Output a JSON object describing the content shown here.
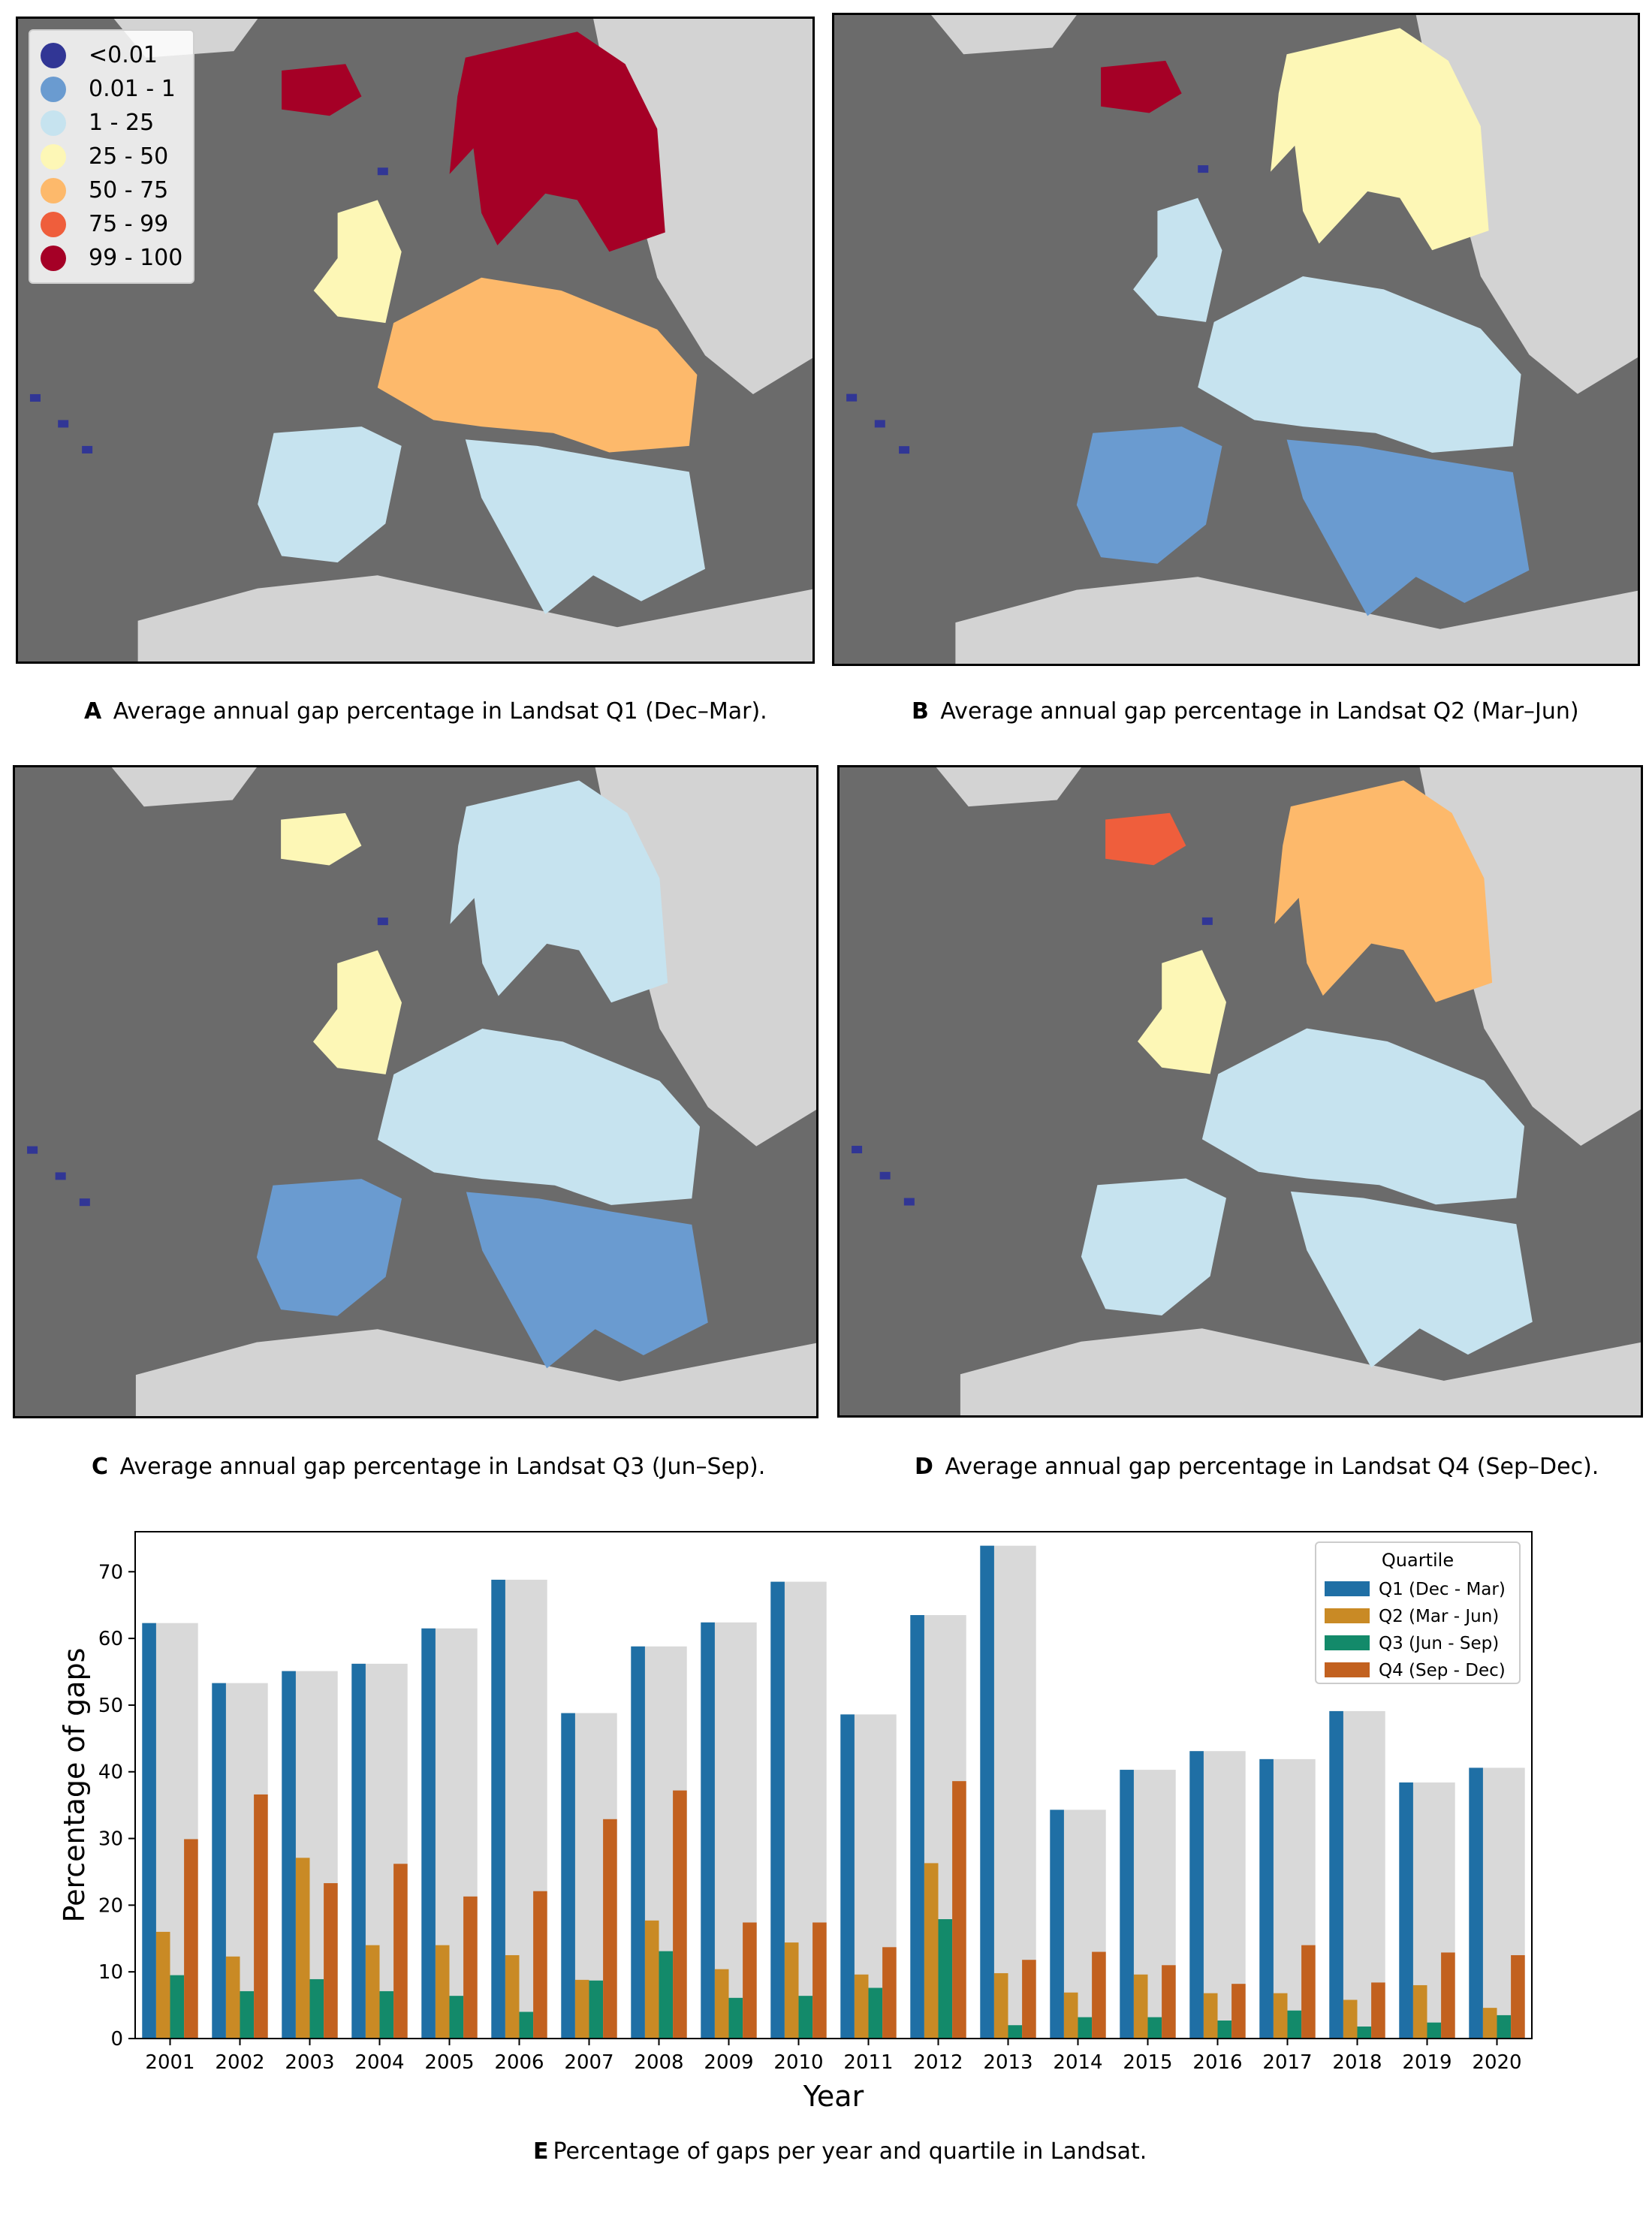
{
  "colors": {
    "ocean": "#6b6b6b",
    "land_outside": "#d3d3d3",
    "bins": [
      "#313695",
      "#6a9bd0",
      "#c6e3ef",
      "#fdf7b6",
      "#fdb96b",
      "#ef5e3c",
      "#a50026"
    ]
  },
  "legend": {
    "items": [
      {
        "label": "<0.01",
        "color": "#313695"
      },
      {
        "label": "0.01 - 1",
        "color": "#6a9bd0"
      },
      {
        "label": "1 - 25",
        "color": "#c6e3ef"
      },
      {
        "label": "25 - 50",
        "color": "#fdf7b6"
      },
      {
        "label": "50 - 75",
        "color": "#fdb96b"
      },
      {
        "label": "75 - 99",
        "color": "#ef5e3c"
      },
      {
        "label": "99 - 100",
        "color": "#a50026"
      }
    ]
  },
  "maps": [
    {
      "letter": "A",
      "caption": "Average annual gap percentage in Landsat Q1 (Dec–Mar).",
      "dominant_by_region": {
        "iceland": "99 - 100",
        "scandinavia": "99 - 100",
        "british_isles": "25 - 50",
        "central": "50 - 75",
        "iberia": "1 - 25",
        "italy_balkans": "1 - 25"
      }
    },
    {
      "letter": "B",
      "caption": "Average annual gap percentage in Landsat Q2 (Mar–Jun)",
      "dominant_by_region": {
        "iceland": "99 - 100",
        "scandinavia": "25 - 50",
        "british_isles": "1 - 25",
        "central": "1 - 25",
        "iberia": "0.01 - 1",
        "italy_balkans": "0.01 - 1"
      }
    },
    {
      "letter": "C",
      "caption": "Average annual gap percentage in Landsat Q3 (Jun–Sep).",
      "dominant_by_region": {
        "iceland": "25 - 50",
        "scandinavia": "1 - 25",
        "british_isles": "25 - 50",
        "central": "1 - 25",
        "iberia": "0.01 - 1",
        "italy_balkans": "0.01 - 1"
      }
    },
    {
      "letter": "D",
      "caption": "Average annual gap percentage in Landsat Q4 (Sep–Dec).",
      "dominant_by_region": {
        "iceland": "75 - 99",
        "scandinavia": "50 - 75",
        "british_isles": "25 - 50",
        "central": "1 - 25",
        "iberia": "1 - 25",
        "italy_balkans": "1 - 25"
      }
    }
  ],
  "chart_caption": {
    "letter": "E",
    "text": "Percentage of gaps per year and quartile in Landsat."
  },
  "chart_data": {
    "type": "bar",
    "xlabel": "Year",
    "ylabel": "Percentage of gaps",
    "ylim": [
      0,
      76
    ],
    "yticks": [
      0,
      10,
      20,
      30,
      40,
      50,
      60,
      70
    ],
    "grid": false,
    "legend_title": "Quartile",
    "legend_position": "top-right",
    "background_series_color": "#d9d9d9",
    "categories": [
      "2001",
      "2002",
      "2003",
      "2004",
      "2005",
      "2006",
      "2007",
      "2008",
      "2009",
      "2010",
      "2011",
      "2012",
      "2013",
      "2014",
      "2015",
      "2016",
      "2017",
      "2018",
      "2019",
      "2020"
    ],
    "series": [
      {
        "name": "Q1 (Dec - Mar)",
        "color": "#1f6fa5",
        "values": [
          62.3,
          53.3,
          55.1,
          56.2,
          61.5,
          68.8,
          48.8,
          58.8,
          62.4,
          68.5,
          48.6,
          63.5,
          73.9,
          34.3,
          40.3,
          43.1,
          41.9,
          49.1,
          38.4,
          40.6
        ]
      },
      {
        "name": "Q2 (Mar - Jun)",
        "color": "#c98a25",
        "values": [
          16.0,
          12.3,
          27.1,
          14.0,
          14.0,
          12.5,
          8.8,
          17.7,
          10.4,
          14.4,
          9.6,
          26.3,
          9.8,
          6.9,
          9.6,
          6.8,
          6.8,
          5.8,
          8.0,
          4.6
        ]
      },
      {
        "name": "Q3 (Jun - Sep)",
        "color": "#138a6a",
        "values": [
          9.5,
          7.1,
          8.9,
          7.1,
          6.4,
          4.0,
          8.7,
          13.1,
          6.1,
          6.4,
          7.6,
          17.9,
          2.0,
          3.2,
          3.2,
          2.7,
          4.2,
          1.8,
          2.4,
          3.5
        ]
      },
      {
        "name": "Q4 (Sep - Dec)",
        "color": "#c2611f",
        "values": [
          29.9,
          36.6,
          23.3,
          26.2,
          21.3,
          22.1,
          32.9,
          37.2,
          17.4,
          17.4,
          13.7,
          38.6,
          11.8,
          13.0,
          11.0,
          8.2,
          14.0,
          8.4,
          12.9,
          12.5
        ]
      }
    ]
  }
}
